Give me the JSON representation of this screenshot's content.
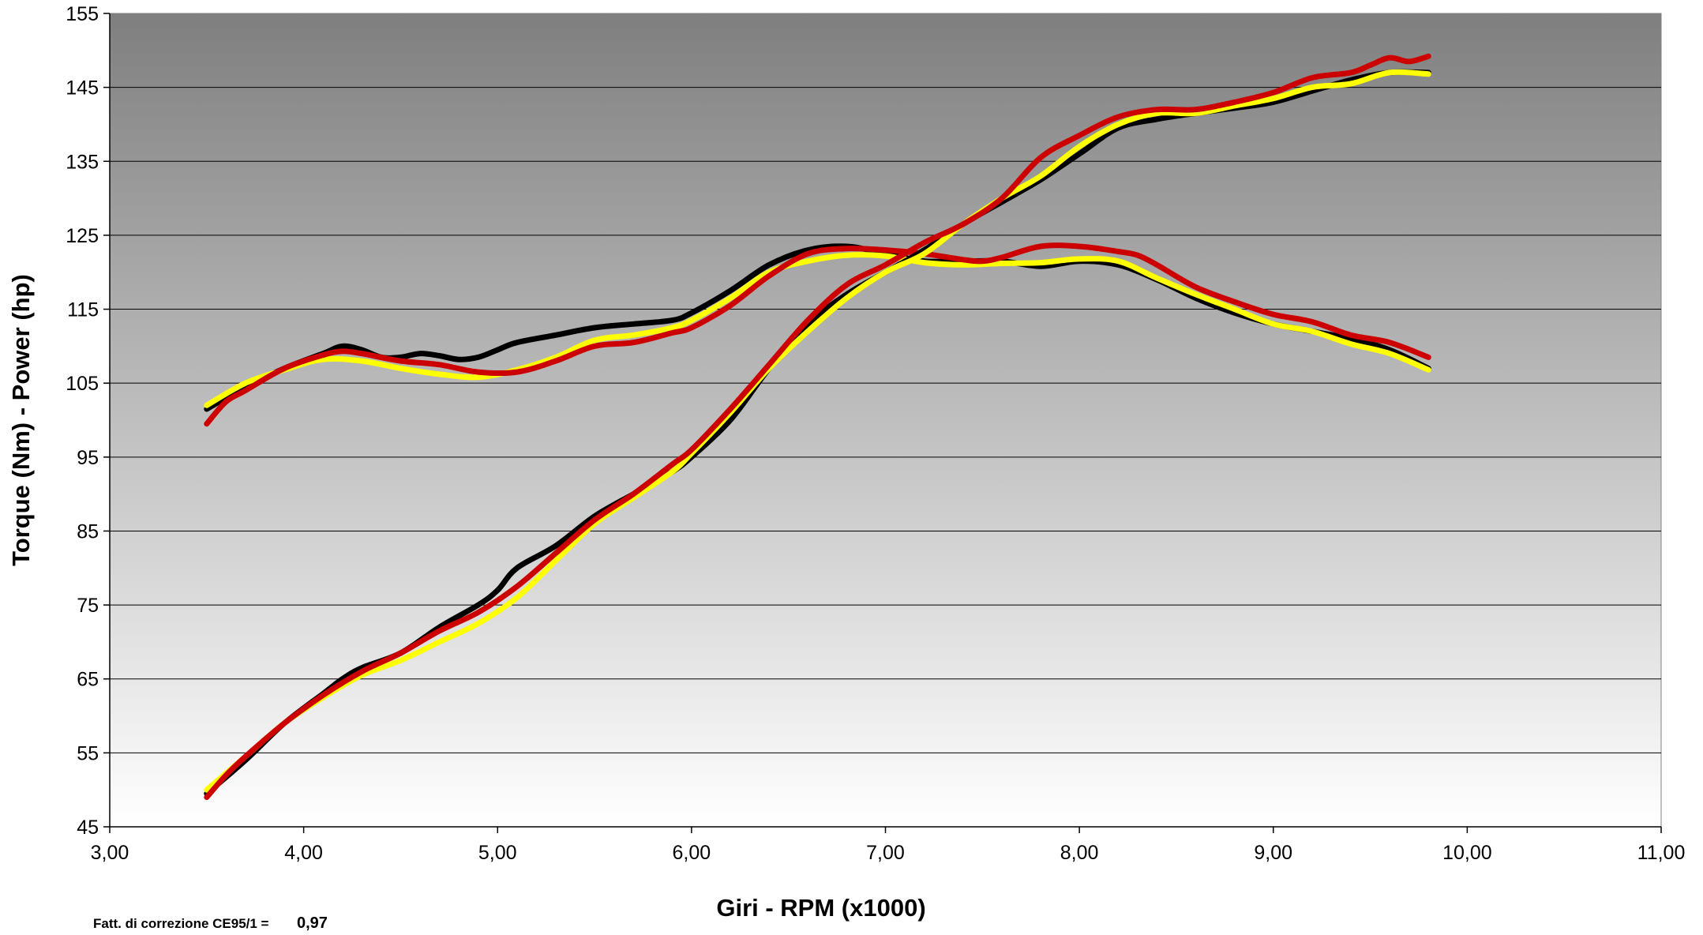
{
  "chart_data": {
    "type": "line",
    "title": "",
    "xlabel": "Giri - RPM (x1000)",
    "ylabel": "Torque (Nm) - Power (hp)",
    "xlim": [
      3,
      11
    ],
    "ylim": [
      45,
      155
    ],
    "x_ticks": [
      "3,00",
      "4,00",
      "5,00",
      "6,00",
      "7,00",
      "8,00",
      "9,00",
      "10,00",
      "11,00"
    ],
    "y_ticks": [
      "45",
      "55",
      "65",
      "75",
      "85",
      "95",
      "105",
      "115",
      "125",
      "135",
      "145",
      "155"
    ],
    "grid": true,
    "legend": "none",
    "background": "gradient dark-gray top to white bottom",
    "series": [
      {
        "color": "#000000",
        "x": [
          3.5,
          3.7,
          3.9,
          4.1,
          4.2,
          4.3,
          4.4,
          4.5,
          4.6,
          4.7,
          4.8,
          4.9,
          5.0,
          5.1,
          5.3,
          5.5,
          5.7,
          5.9,
          6.0,
          6.2,
          6.4,
          6.6,
          6.8,
          7.0,
          7.2,
          7.4,
          7.6,
          7.8,
          8.0,
          8.2,
          8.4,
          8.6,
          8.8,
          9.0,
          9.2,
          9.4,
          9.6,
          9.8
        ],
        "values": [
          101.5,
          104.5,
          107,
          109,
          110,
          109.5,
          108.5,
          108.5,
          109,
          108.7,
          108.2,
          108.5,
          109.5,
          110.5,
          111.5,
          112.5,
          113,
          113.5,
          114.5,
          117.5,
          121,
          123,
          123.5,
          122.5,
          121.5,
          121.5,
          121.5,
          120.8,
          121.5,
          121,
          119,
          116.5,
          114.5,
          113,
          112,
          111,
          109.5,
          107
        ]
      },
      {
        "color": "#ffff00",
        "x": [
          3.5,
          3.7,
          3.9,
          4.1,
          4.3,
          4.5,
          4.7,
          4.9,
          5.1,
          5.3,
          5.5,
          5.7,
          5.9,
          6.0,
          6.2,
          6.4,
          6.6,
          6.8,
          7.0,
          7.2,
          7.4,
          7.6,
          7.8,
          8.0,
          8.2,
          8.4,
          8.6,
          8.8,
          9.0,
          9.2,
          9.4,
          9.6,
          9.8
        ],
        "values": [
          102,
          105,
          106.8,
          108.2,
          108,
          107,
          106.2,
          105.8,
          106.8,
          108.5,
          110.8,
          111.5,
          112.5,
          113.5,
          116.5,
          120,
          121.5,
          122.3,
          122.2,
          121.3,
          121,
          121.2,
          121.3,
          121.8,
          121.5,
          119.2,
          117,
          115,
          113,
          112,
          110.3,
          109,
          106.8
        ]
      },
      {
        "color": "#cc0000",
        "x": [
          3.5,
          3.6,
          3.7,
          3.9,
          4.1,
          4.2,
          4.3,
          4.5,
          4.7,
          4.9,
          5.1,
          5.3,
          5.5,
          5.7,
          5.9,
          6.0,
          6.2,
          6.4,
          6.6,
          6.8,
          7.0,
          7.2,
          7.4,
          7.5,
          7.6,
          7.8,
          8.0,
          8.2,
          8.3,
          8.4,
          8.6,
          8.8,
          9.0,
          9.2,
          9.4,
          9.6,
          9.8
        ],
        "values": [
          99.5,
          102.5,
          104,
          107,
          108.8,
          109.3,
          109,
          108,
          107.5,
          106.5,
          106.5,
          108,
          110,
          110.5,
          111.8,
          112.5,
          115.5,
          119.5,
          122.5,
          123.2,
          123,
          122.5,
          121.7,
          121.5,
          122,
          123.5,
          123.5,
          122.8,
          122.3,
          121,
          118,
          116,
          114.3,
          113.3,
          111.5,
          110.5,
          108.5
        ]
      },
      {
        "color": "#000000",
        "x": [
          3.5,
          3.7,
          3.9,
          4.1,
          4.2,
          4.3,
          4.5,
          4.7,
          4.9,
          5.0,
          5.1,
          5.3,
          5.5,
          5.7,
          5.9,
          6.0,
          6.2,
          6.4,
          6.6,
          6.8,
          7.0,
          7.2,
          7.4,
          7.6,
          7.8,
          8.0,
          8.2,
          8.4,
          8.6,
          8.8,
          9.0,
          9.2,
          9.4,
          9.6,
          9.8
        ],
        "values": [
          49.5,
          54,
          59,
          63,
          65,
          66.5,
          68.5,
          72,
          75,
          77,
          80,
          83,
          87,
          90,
          93,
          95,
          100,
          107,
          113,
          117,
          120,
          123,
          126.5,
          129.5,
          132.5,
          136,
          139.5,
          140.7,
          141.5,
          142.2,
          143,
          144.5,
          146,
          147,
          147
        ]
      },
      {
        "color": "#ffff00",
        "x": [
          3.5,
          3.7,
          3.9,
          4.1,
          4.3,
          4.5,
          4.7,
          4.9,
          5.1,
          5.3,
          5.5,
          5.7,
          5.9,
          6.0,
          6.2,
          6.4,
          6.6,
          6.8,
          7.0,
          7.2,
          7.4,
          7.6,
          7.8,
          8.0,
          8.2,
          8.4,
          8.6,
          8.8,
          9.0,
          9.2,
          9.4,
          9.6,
          9.8
        ],
        "values": [
          50,
          54.5,
          59,
          62.5,
          65.5,
          67.5,
          70,
          72.5,
          76,
          81,
          86,
          89.5,
          93,
          95.5,
          101,
          107,
          112,
          116.5,
          120,
          122.5,
          126.5,
          130,
          133,
          137,
          140,
          141.5,
          141.5,
          142.5,
          143.5,
          145,
          145.5,
          147,
          146.8
        ]
      },
      {
        "color": "#cc0000",
        "x": [
          3.5,
          3.6,
          3.7,
          3.9,
          4.1,
          4.3,
          4.5,
          4.7,
          4.9,
          5.1,
          5.3,
          5.5,
          5.7,
          5.9,
          6.0,
          6.2,
          6.4,
          6.6,
          6.8,
          7.0,
          7.2,
          7.4,
          7.6,
          7.8,
          8.0,
          8.2,
          8.4,
          8.6,
          8.8,
          9.0,
          9.2,
          9.4,
          9.5,
          9.6,
          9.7,
          9.8
        ],
        "values": [
          49,
          52,
          54.5,
          59,
          62.8,
          66,
          68.5,
          71.5,
          74,
          77.5,
          82,
          86.5,
          90,
          94,
          96,
          101.5,
          107.5,
          113.5,
          118.3,
          121,
          124,
          126.5,
          130,
          135.5,
          138.5,
          141,
          142,
          142,
          143,
          144.3,
          146.3,
          147,
          148,
          149,
          148.5,
          149.2
        ]
      }
    ]
  },
  "footnote": {
    "label": "Fatt. di correzione CE95/1 =",
    "value": "0,97"
  }
}
